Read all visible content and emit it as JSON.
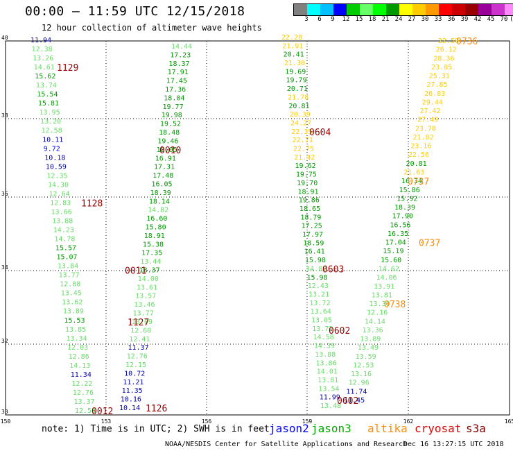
{
  "title": "00:00 – 11:59 UTC 12/15/2018",
  "subtitle": "12 hour collection of altimeter wave heights",
  "colorbar": {
    "colors": [
      "#808080",
      "#00ffff",
      "#00c0ff",
      "#0000ff",
      "#00cc00",
      "#66ff66",
      "#00ff00",
      "#009900",
      "#ffff00",
      "#ffcc00",
      "#ff9900",
      "#ff0000",
      "#cc0000",
      "#990000",
      "#990099",
      "#cc33cc",
      "#ff88ff",
      "#000000"
    ],
    "ticks": [
      "3",
      "6",
      "9",
      "12",
      "15",
      "18",
      "21",
      "24",
      "27",
      "30",
      "33",
      "36",
      "39",
      "42",
      "45",
      "70",
      "(ft)"
    ]
  },
  "axes": {
    "y_ticks": [
      "40",
      "38",
      "36",
      "34",
      "32",
      "30"
    ],
    "x_ticks": [
      "150",
      "153",
      "156",
      "159",
      "162",
      "165"
    ]
  },
  "note": "note:  1) Time is in UTC; 2) SWH is in feet",
  "legend": [
    {
      "name": "jason2",
      "color": "#0000ff"
    },
    {
      "name": "jason3",
      "color": "#00aa00"
    },
    {
      "name": "altika",
      "color": "#ff8c00"
    },
    {
      "name": "cryosat",
      "color": "#e00000"
    },
    {
      "name": "s3a",
      "color": "#800000"
    }
  ],
  "footer_left": "NOAA/NESDIS Center for Satellite Applications and Research",
  "footer_right": "Dec 16 13:27:15 UTC 2018",
  "tracks": [
    {
      "pts": [
        [
          "11.94",
          "#0000aa"
        ],
        [
          "12.38",
          "#66dd66"
        ],
        [
          "13.26",
          "#66dd66"
        ],
        [
          "14.61",
          "#66dd66"
        ],
        [
          "15.62",
          "#009900"
        ],
        [
          "13.74",
          "#66dd66"
        ],
        [
          "15.54",
          "#009900"
        ],
        [
          "15.81",
          "#009900"
        ],
        [
          "13.95",
          "#66dd66"
        ],
        [
          "13.20",
          "#66dd66"
        ],
        [
          "12.58",
          "#66dd66"
        ],
        [
          "10.11",
          "#0000aa"
        ],
        [
          "9.72",
          "#0000ff"
        ],
        [
          "10.18",
          "#0000aa"
        ],
        [
          "10.59",
          "#0000aa"
        ],
        [
          "12.35",
          "#66dd66"
        ],
        [
          "14.30",
          "#66dd66"
        ],
        [
          "12.64",
          "#66dd66"
        ],
        [
          "12.83",
          "#66dd66"
        ],
        [
          "13.66",
          "#66dd66"
        ],
        [
          "13.88",
          "#66dd66"
        ],
        [
          "14.23",
          "#66dd66"
        ],
        [
          "14.78",
          "#66dd66"
        ],
        [
          "15.57",
          "#009900"
        ],
        [
          "15.07",
          "#009900"
        ],
        [
          "13.84",
          "#66dd66"
        ],
        [
          "13.77",
          "#66dd66"
        ],
        [
          "12.88",
          "#66dd66"
        ],
        [
          "13.45",
          "#66dd66"
        ],
        [
          "13.62",
          "#66dd66"
        ],
        [
          "13.89",
          "#66dd66"
        ],
        [
          "15.53",
          "#009900"
        ],
        [
          "13.85",
          "#66dd66"
        ],
        [
          "13.34",
          "#66dd66"
        ],
        [
          "12.03",
          "#66dd66"
        ],
        [
          "12.86",
          "#66dd66"
        ],
        [
          "14.13",
          "#66dd66"
        ],
        [
          "11.34",
          "#0000aa"
        ],
        [
          "12.22",
          "#66dd66"
        ],
        [
          "12.76",
          "#66dd66"
        ],
        [
          "13.37",
          "#66dd66"
        ],
        [
          "12.58",
          "#66dd66"
        ]
      ],
      "tags": [
        [
          "1129",
          3
        ],
        [
          "1128",
          18
        ],
        [
          "0012",
          41
        ]
      ]
    },
    {
      "pts": [
        [
          "14.44",
          "#66dd66"
        ],
        [
          "17.23",
          "#009900"
        ],
        [
          "18.37",
          "#009900"
        ],
        [
          "17.91",
          "#009900"
        ],
        [
          "17.45",
          "#009900"
        ],
        [
          "17.36",
          "#009900"
        ],
        [
          "18.04",
          "#009900"
        ],
        [
          "19.77",
          "#009900"
        ],
        [
          "19.98",
          "#009900"
        ],
        [
          "19.52",
          "#009900"
        ],
        [
          "18.48",
          "#009900"
        ],
        [
          "19.46",
          "#009900"
        ],
        [
          "18.05",
          "#009900"
        ],
        [
          "16.91",
          "#009900"
        ],
        [
          "17.31",
          "#009900"
        ],
        [
          "17.48",
          "#009900"
        ],
        [
          "16.05",
          "#009900"
        ],
        [
          "18.39",
          "#009900"
        ],
        [
          "18.14",
          "#009900"
        ],
        [
          "14.82",
          "#66dd66"
        ],
        [
          "16.60",
          "#009900"
        ],
        [
          "15.80",
          "#009900"
        ],
        [
          "18.91",
          "#009900"
        ],
        [
          "15.38",
          "#009900"
        ],
        [
          "17.35",
          "#009900"
        ],
        [
          "13.44",
          "#66dd66"
        ],
        [
          "18.37",
          "#009900"
        ],
        [
          "14.00",
          "#66dd66"
        ],
        [
          "13.61",
          "#66dd66"
        ],
        [
          "13.57",
          "#66dd66"
        ],
        [
          "13.46",
          "#66dd66"
        ],
        [
          "13.77",
          "#66dd66"
        ],
        [
          "13.09",
          "#66dd66"
        ],
        [
          "12.60",
          "#66dd66"
        ],
        [
          "12.41",
          "#66dd66"
        ],
        [
          "11.37",
          "#0000aa"
        ],
        [
          "12.76",
          "#66dd66"
        ],
        [
          "12.15",
          "#66dd66"
        ],
        [
          "10.72",
          "#0000aa"
        ],
        [
          "11.21",
          "#0000aa"
        ],
        [
          "11.35",
          "#0000aa"
        ],
        [
          "10.16",
          "#0000aa"
        ],
        [
          "10.14",
          "#0000aa"
        ]
      ],
      "tags": [
        [
          "0010",
          12
        ],
        [
          "0011",
          26
        ],
        [
          "1127",
          32
        ],
        [
          "1126",
          42
        ]
      ]
    },
    {
      "pts": [
        [
          "22.28",
          "#ffcc00"
        ],
        [
          "21.91",
          "#ffcc00"
        ],
        [
          "20.41",
          "#009900"
        ],
        [
          "21.30",
          "#ffcc00"
        ],
        [
          "19.69",
          "#009900"
        ],
        [
          "19.79",
          "#009900"
        ],
        [
          "20.71",
          "#009900"
        ],
        [
          "21.78",
          "#ffcc00"
        ],
        [
          "20.81",
          "#009900"
        ],
        [
          "20.39",
          "#ffcc00"
        ],
        [
          "24.27",
          "#ffcc00"
        ],
        [
          "22.35",
          "#ffcc00"
        ],
        [
          "22.71",
          "#ffcc00"
        ],
        [
          "22.75",
          "#ffcc00"
        ],
        [
          "21.42",
          "#ffcc00"
        ],
        [
          "19.62",
          "#009900"
        ],
        [
          "19.75",
          "#009900"
        ],
        [
          "19.70",
          "#009900"
        ],
        [
          "18.91",
          "#009900"
        ],
        [
          "19.86",
          "#009900"
        ],
        [
          "18.65",
          "#009900"
        ],
        [
          "18.79",
          "#009900"
        ],
        [
          "17.25",
          "#009900"
        ],
        [
          "17.97",
          "#009900"
        ],
        [
          "18.59",
          "#009900"
        ],
        [
          "16.41",
          "#009900"
        ],
        [
          "15.98",
          "#009900"
        ],
        [
          "14.82",
          "#66dd66"
        ],
        [
          "15.98",
          "#009900"
        ],
        [
          "12.43",
          "#66dd66"
        ],
        [
          "13.21",
          "#66dd66"
        ],
        [
          "13.72",
          "#66dd66"
        ],
        [
          "13.64",
          "#66dd66"
        ],
        [
          "13.05",
          "#66dd66"
        ],
        [
          "13.72",
          "#66dd66"
        ],
        [
          "14.58",
          "#66dd66"
        ],
        [
          "14.39",
          "#66dd66"
        ],
        [
          "13.88",
          "#66dd66"
        ],
        [
          "13.86",
          "#66dd66"
        ],
        [
          "14.01",
          "#66dd66"
        ],
        [
          "13.81",
          "#66dd66"
        ],
        [
          "13.54",
          "#66dd66"
        ],
        [
          "11.99",
          "#0000aa"
        ],
        [
          "13.48",
          "#66dd66"
        ]
      ],
      "tags": [
        [
          "0604",
          11
        ]
      ]
    },
    {
      "pts": [
        [
          "22.59",
          "#ffcc00"
        ],
        [
          "26.12",
          "#ffcc00"
        ],
        [
          "28.36",
          "#ffcc00"
        ],
        [
          "23.85",
          "#ffcc00"
        ],
        [
          "25.31",
          "#ffcc00"
        ],
        [
          "27.85",
          "#ffcc00"
        ],
        [
          "26.83",
          "#ffcc00"
        ],
        [
          "29.44",
          "#ffcc00"
        ],
        [
          "27.42",
          "#ffcc00"
        ],
        [
          "27.49",
          "#ffcc00"
        ],
        [
          "23.78",
          "#ffcc00"
        ],
        [
          "21.82",
          "#ffcc00"
        ],
        [
          "23.16",
          "#ffcc00"
        ],
        [
          "22.56",
          "#ffcc00"
        ],
        [
          "20.81",
          "#009900"
        ],
        [
          "21.63",
          "#ffcc00"
        ],
        [
          "16.34",
          "#009900"
        ],
        [
          "15.86",
          "#009900"
        ],
        [
          "15.92",
          "#009900"
        ],
        [
          "18.39",
          "#009900"
        ],
        [
          "17.90",
          "#009900"
        ],
        [
          "16.56",
          "#009900"
        ],
        [
          "16.35",
          "#009900"
        ],
        [
          "17.04",
          "#009900"
        ],
        [
          "15.19",
          "#009900"
        ],
        [
          "15.60",
          "#009900"
        ],
        [
          "14.62",
          "#66dd66"
        ],
        [
          "14.06",
          "#66dd66"
        ],
        [
          "13.91",
          "#66dd66"
        ],
        [
          "13.81",
          "#66dd66"
        ],
        [
          "13.30",
          "#66dd66"
        ],
        [
          "12.16",
          "#66dd66"
        ],
        [
          "14.14",
          "#66dd66"
        ],
        [
          "13.36",
          "#66dd66"
        ],
        [
          "13.89",
          "#66dd66"
        ],
        [
          "13.49",
          "#66dd66"
        ],
        [
          "13.59",
          "#66dd66"
        ],
        [
          "12.53",
          "#66dd66"
        ],
        [
          "13.16",
          "#66dd66"
        ],
        [
          "12.96",
          "#66dd66"
        ],
        [
          "11.74",
          "#0000aa"
        ],
        [
          "11.45",
          "#0000aa"
        ]
      ],
      "tags": [
        [
          "0736",
          0
        ],
        [
          "0737",
          16
        ],
        [
          "0737",
          23
        ],
        [
          "0738",
          30
        ],
        [
          "0603",
          26
        ],
        [
          "0602",
          33
        ],
        [
          "0602",
          42
        ]
      ]
    }
  ]
}
